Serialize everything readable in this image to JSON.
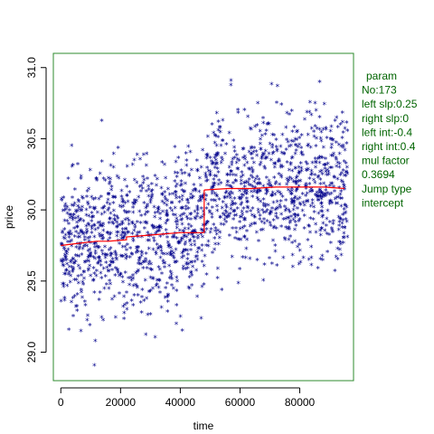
{
  "colors": {
    "points": "#00008b",
    "fit_line": "#ff0000",
    "box": "#2e8b2e",
    "legend_text": "#006400"
  },
  "legend": {
    "lines": [
      "param",
      "No:173",
      "left slp:0.25",
      "right slp:0",
      "left int:-0.4",
      "right int:0.4",
      "mul factor",
      "0.3694",
      "Jump type",
      "intercept"
    ]
  },
  "chart_data": {
    "type": "scatter",
    "xlabel": "time",
    "ylabel": "price",
    "xlim": [
      -2500,
      98000
    ],
    "ylim": [
      28.8,
      31.1
    ],
    "x_ticks": [
      0,
      20000,
      40000,
      60000,
      80000
    ],
    "x_tick_labels": [
      "0",
      "20000",
      "40000",
      "60000",
      "80000"
    ],
    "y_ticks": [
      29.0,
      29.5,
      30.0,
      30.5,
      31.0
    ],
    "y_tick_labels": [
      "29.0",
      "29.5",
      "30.0",
      "30.5",
      "31.0"
    ],
    "grid": false,
    "marker": "*",
    "x_range": [
      0,
      96000
    ],
    "jump_x": 48000,
    "num_points": 1800,
    "noise_sd": 0.26,
    "fit_segments": [
      {
        "name": "left fit",
        "points": [
          [
            0,
            29.75
          ],
          [
            4000,
            29.76
          ],
          [
            8000,
            29.77
          ],
          [
            12000,
            29.78
          ],
          [
            16000,
            29.78
          ],
          [
            22000,
            29.79
          ],
          [
            22000,
            29.81
          ],
          [
            28000,
            29.82
          ],
          [
            34000,
            29.83
          ],
          [
            40000,
            29.84
          ],
          [
            48000,
            29.84
          ]
        ]
      },
      {
        "name": "right fit",
        "points": [
          [
            48000,
            30.14
          ],
          [
            56000,
            30.15
          ],
          [
            64000,
            30.15
          ],
          [
            72000,
            30.16
          ],
          [
            80000,
            30.16
          ],
          [
            88000,
            30.16
          ],
          [
            95000,
            30.15
          ]
        ]
      }
    ],
    "jump": {
      "x": 48000,
      "from": 29.84,
      "to": 30.14
    }
  }
}
